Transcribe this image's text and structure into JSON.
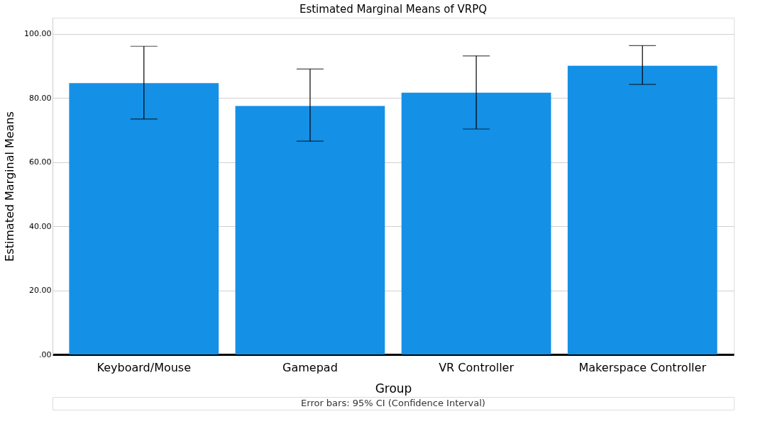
{
  "chart_data": {
    "type": "bar",
    "title": "Estimated Marginal Means of VRPQ",
    "xlabel": "Group",
    "ylabel": "Estimated Marginal Means",
    "categories": [
      "Keyboard/Mouse",
      "Gamepad",
      "VR Controller",
      "Makerspace Controller"
    ],
    "values": [
      84.6,
      77.5,
      81.6,
      90.0
    ],
    "errors": [
      [
        73.4,
        96.1
      ],
      [
        66.5,
        89.0
      ],
      [
        70.3,
        93.1
      ],
      [
        84.2,
        96.3
      ]
    ],
    "color": "#1490e6",
    "ylim": [
      0,
      105
    ],
    "yticks": [
      {
        "value": 0,
        "label": ".00"
      },
      {
        "value": 20,
        "label": "20.00"
      },
      {
        "value": 40,
        "label": "40.00"
      },
      {
        "value": 60,
        "label": "60.00"
      },
      {
        "value": 80,
        "label": "80.00"
      },
      {
        "value": 100,
        "label": "100.00"
      }
    ],
    "grid": "y",
    "annotations": [
      "Error bars: 95% CI (Confidence Interval)"
    ]
  }
}
